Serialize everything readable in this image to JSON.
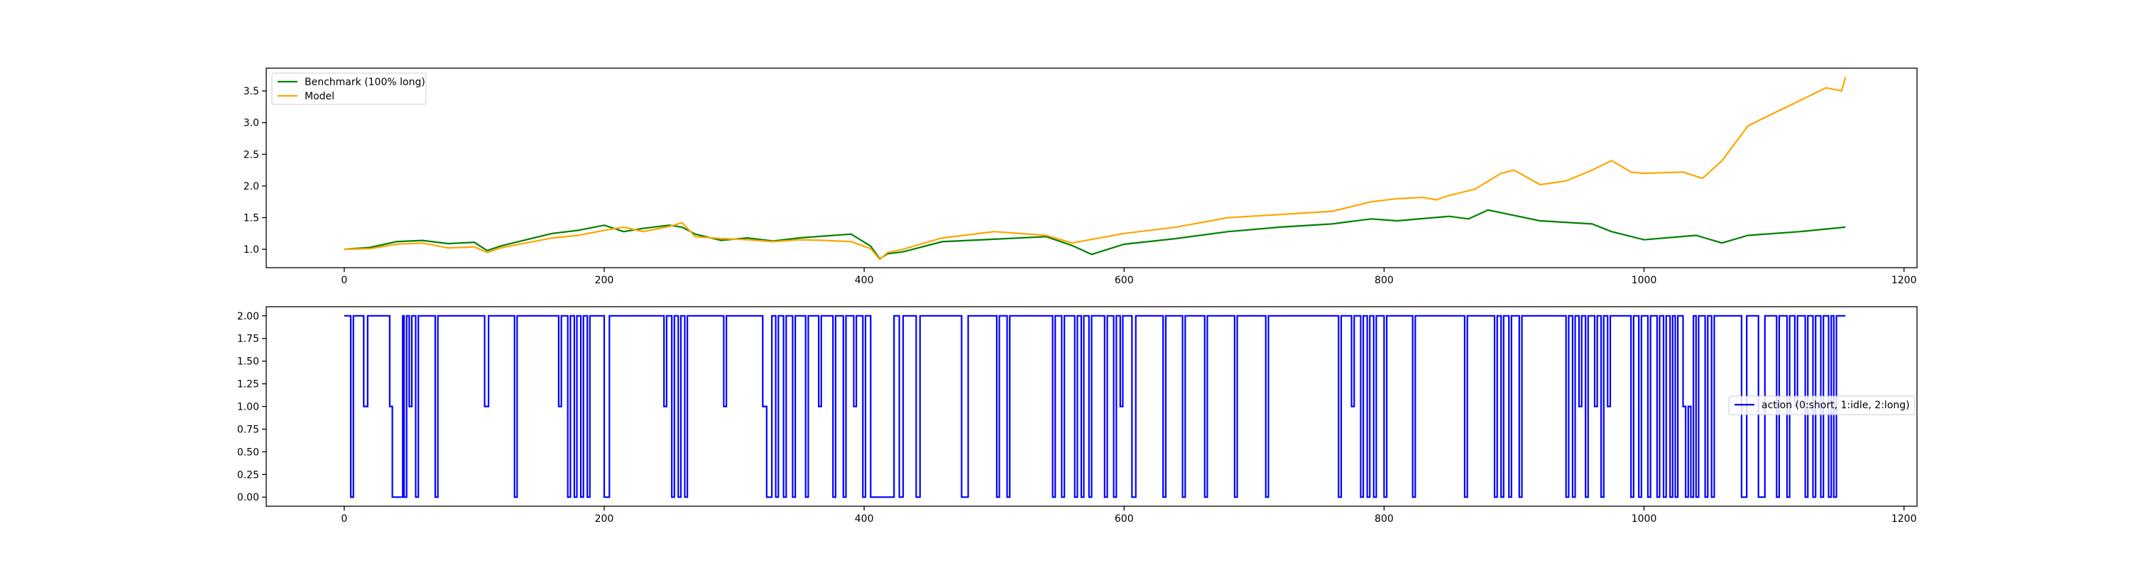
{
  "chart_data": [
    {
      "type": "line",
      "title": "",
      "xlabel": "",
      "ylabel": "",
      "xlim": [
        -60,
        1210
      ],
      "ylim": [
        0.71,
        3.86
      ],
      "x_ticks": [
        0,
        200,
        400,
        600,
        800,
        1000,
        1200
      ],
      "y_ticks": [
        1.0,
        1.5,
        2.0,
        2.5,
        3.0,
        3.5
      ],
      "y_tick_labels": [
        "1.0",
        "1.5",
        "2.0",
        "2.5",
        "3.0",
        "3.5"
      ],
      "grid": false,
      "legend_position": "upper-left",
      "series": [
        {
          "name": "Benchmark (100% long)",
          "color": "#008000",
          "x": [
            0,
            20,
            40,
            60,
            80,
            100,
            110,
            120,
            140,
            160,
            180,
            200,
            215,
            230,
            250,
            260,
            270,
            290,
            310,
            330,
            350,
            370,
            390,
            405,
            412,
            418,
            430,
            460,
            500,
            540,
            560,
            575,
            600,
            640,
            680,
            720,
            760,
            790,
            810,
            850,
            865,
            880,
            920,
            960,
            975,
            1000,
            1040,
            1060,
            1080,
            1120,
            1155
          ],
          "y": [
            1.0,
            1.03,
            1.12,
            1.14,
            1.09,
            1.11,
            0.98,
            1.05,
            1.15,
            1.25,
            1.3,
            1.38,
            1.28,
            1.33,
            1.38,
            1.35,
            1.24,
            1.14,
            1.18,
            1.13,
            1.18,
            1.21,
            1.24,
            1.05,
            0.85,
            0.93,
            0.96,
            1.12,
            1.16,
            1.2,
            1.06,
            0.92,
            1.08,
            1.17,
            1.28,
            1.35,
            1.4,
            1.48,
            1.45,
            1.52,
            1.48,
            1.62,
            1.45,
            1.4,
            1.28,
            1.15,
            1.22,
            1.1,
            1.22,
            1.28,
            1.35
          ]
        },
        {
          "name": "Model",
          "color": "#ffa500",
          "x": [
            0,
            20,
            40,
            60,
            80,
            100,
            110,
            120,
            140,
            160,
            180,
            200,
            215,
            230,
            250,
            260,
            270,
            290,
            310,
            330,
            350,
            370,
            390,
            405,
            412,
            418,
            430,
            460,
            500,
            540,
            560,
            600,
            640,
            680,
            720,
            760,
            790,
            810,
            830,
            840,
            850,
            870,
            890,
            900,
            920,
            940,
            960,
            975,
            990,
            1000,
            1030,
            1045,
            1060,
            1080,
            1100,
            1120,
            1140,
            1152,
            1155
          ],
          "y": [
            1.0,
            1.01,
            1.08,
            1.1,
            1.02,
            1.04,
            0.95,
            1.02,
            1.1,
            1.18,
            1.22,
            1.3,
            1.35,
            1.28,
            1.36,
            1.42,
            1.2,
            1.17,
            1.15,
            1.12,
            1.15,
            1.14,
            1.12,
            1.01,
            0.84,
            0.95,
            1.0,
            1.18,
            1.28,
            1.22,
            1.1,
            1.25,
            1.35,
            1.5,
            1.55,
            1.6,
            1.75,
            1.8,
            1.82,
            1.78,
            1.85,
            1.95,
            2.2,
            2.25,
            2.02,
            2.08,
            2.25,
            2.4,
            2.22,
            2.2,
            2.22,
            2.12,
            2.4,
            2.95,
            3.15,
            3.35,
            3.55,
            3.5,
            3.72
          ]
        }
      ]
    },
    {
      "type": "line",
      "title": "",
      "xlabel": "",
      "ylabel": "",
      "xlim": [
        -60,
        1210
      ],
      "ylim": [
        -0.1,
        2.1
      ],
      "x_ticks": [
        0,
        200,
        400,
        600,
        800,
        1000,
        1200
      ],
      "y_ticks": [
        0.0,
        0.25,
        0.5,
        0.75,
        1.0,
        1.25,
        1.5,
        1.75,
        2.0
      ],
      "y_tick_labels": [
        "0.00",
        "0.25",
        "0.50",
        "0.75",
        "1.00",
        "1.25",
        "1.50",
        "1.75",
        "2.00"
      ],
      "grid": false,
      "legend_position": "center-right",
      "series": [
        {
          "name": "action (0:short, 1:idle, 2:long)",
          "color": "#0000ff",
          "x_start": 0,
          "x_end": 1155,
          "runs": [
            [
              0,
              2
            ],
            [
              5,
              0
            ],
            [
              7,
              2
            ],
            [
              15,
              1
            ],
            [
              18,
              2
            ],
            [
              35,
              1
            ],
            [
              37,
              0
            ],
            [
              45,
              2
            ],
            [
              46,
              0
            ],
            [
              48,
              2
            ],
            [
              50,
              1
            ],
            [
              52,
              2
            ],
            [
              55,
              0
            ],
            [
              57,
              2
            ],
            [
              70,
              0
            ],
            [
              72,
              2
            ],
            [
              108,
              1
            ],
            [
              111,
              2
            ],
            [
              131,
              0
            ],
            [
              133,
              2
            ],
            [
              165,
              1
            ],
            [
              167,
              2
            ],
            [
              172,
              0
            ],
            [
              174,
              2
            ],
            [
              177,
              0
            ],
            [
              179,
              2
            ],
            [
              182,
              0
            ],
            [
              184,
              2
            ],
            [
              187,
              0
            ],
            [
              189,
              2
            ],
            [
              200,
              0
            ],
            [
              204,
              2
            ],
            [
              246,
              1
            ],
            [
              248,
              2
            ],
            [
              252,
              0
            ],
            [
              254,
              2
            ],
            [
              257,
              0
            ],
            [
              259,
              2
            ],
            [
              262,
              0
            ],
            [
              264,
              2
            ],
            [
              292,
              1
            ],
            [
              294,
              2
            ],
            [
              322,
              1
            ],
            [
              325,
              0
            ],
            [
              329,
              2
            ],
            [
              332,
              0
            ],
            [
              334,
              2
            ],
            [
              338,
              0
            ],
            [
              340,
              2
            ],
            [
              345,
              0
            ],
            [
              347,
              2
            ],
            [
              355,
              0
            ],
            [
              357,
              2
            ],
            [
              365,
              1
            ],
            [
              367,
              2
            ],
            [
              376,
              0
            ],
            [
              378,
              2
            ],
            [
              384,
              0
            ],
            [
              386,
              2
            ],
            [
              392,
              1
            ],
            [
              394,
              2
            ],
            [
              399,
              0
            ],
            [
              401,
              2
            ],
            [
              405,
              0
            ],
            [
              423,
              2
            ],
            [
              427,
              0
            ],
            [
              430,
              2
            ],
            [
              440,
              0
            ],
            [
              443,
              2
            ],
            [
              475,
              0
            ],
            [
              480,
              2
            ],
            [
              502,
              0
            ],
            [
              504,
              2
            ],
            [
              510,
              0
            ],
            [
              512,
              2
            ],
            [
              545,
              0
            ],
            [
              547,
              2
            ],
            [
              552,
              0
            ],
            [
              554,
              2
            ],
            [
              562,
              0
            ],
            [
              564,
              2
            ],
            [
              567,
              0
            ],
            [
              569,
              2
            ],
            [
              573,
              0
            ],
            [
              575,
              2
            ],
            [
              585,
              0
            ],
            [
              587,
              2
            ],
            [
              592,
              0
            ],
            [
              594,
              2
            ],
            [
              597,
              1
            ],
            [
              599,
              2
            ],
            [
              606,
              0
            ],
            [
              609,
              2
            ],
            [
              630,
              0
            ],
            [
              632,
              2
            ],
            [
              645,
              0
            ],
            [
              647,
              2
            ],
            [
              662,
              0
            ],
            [
              664,
              2
            ],
            [
              685,
              0
            ],
            [
              687,
              2
            ],
            [
              709,
              0
            ],
            [
              711,
              2
            ],
            [
              765,
              0
            ],
            [
              767,
              2
            ],
            [
              775,
              1
            ],
            [
              777,
              2
            ],
            [
              782,
              0
            ],
            [
              784,
              2
            ],
            [
              787,
              0
            ],
            [
              789,
              2
            ],
            [
              792,
              0
            ],
            [
              794,
              2
            ],
            [
              800,
              0
            ],
            [
              802,
              2
            ],
            [
              822,
              0
            ],
            [
              824,
              2
            ],
            [
              862,
              0
            ],
            [
              864,
              2
            ],
            [
              885,
              0
            ],
            [
              887,
              2
            ],
            [
              890,
              0
            ],
            [
              892,
              2
            ],
            [
              896,
              0
            ],
            [
              898,
              2
            ],
            [
              904,
              0
            ],
            [
              906,
              2
            ],
            [
              940,
              0
            ],
            [
              942,
              2
            ],
            [
              945,
              0
            ],
            [
              947,
              2
            ],
            [
              950,
              1
            ],
            [
              952,
              2
            ],
            [
              955,
              0
            ],
            [
              957,
              2
            ],
            [
              962,
              1
            ],
            [
              964,
              2
            ],
            [
              967,
              0
            ],
            [
              969,
              2
            ],
            [
              972,
              1
            ],
            [
              974,
              2
            ],
            [
              990,
              0
            ],
            [
              992,
              2
            ],
            [
              996,
              0
            ],
            [
              998,
              2
            ],
            [
              1003,
              0
            ],
            [
              1005,
              2
            ],
            [
              1010,
              0
            ],
            [
              1012,
              2
            ],
            [
              1015,
              0
            ],
            [
              1017,
              2
            ],
            [
              1020,
              0
            ],
            [
              1022,
              2
            ],
            [
              1024,
              0
            ],
            [
              1026,
              2
            ],
            [
              1030,
              1
            ],
            [
              1032,
              0
            ],
            [
              1034,
              1
            ],
            [
              1036,
              0
            ],
            [
              1038,
              2
            ],
            [
              1040,
              0
            ],
            [
              1042,
              2
            ],
            [
              1047,
              0
            ],
            [
              1049,
              2
            ],
            [
              1052,
              0
            ],
            [
              1054,
              2
            ],
            [
              1075,
              0
            ],
            [
              1079,
              2
            ],
            [
              1088,
              0
            ],
            [
              1093,
              2
            ],
            [
              1102,
              0
            ],
            [
              1104,
              2
            ],
            [
              1110,
              0
            ],
            [
              1112,
              2
            ],
            [
              1116,
              1
            ],
            [
              1118,
              2
            ],
            [
              1124,
              0
            ],
            [
              1126,
              2
            ],
            [
              1130,
              0
            ],
            [
              1132,
              2
            ],
            [
              1136,
              0
            ],
            [
              1138,
              2
            ],
            [
              1142,
              0
            ],
            [
              1144,
              2
            ],
            [
              1146,
              0
            ],
            [
              1148,
              2
            ]
          ]
        }
      ]
    }
  ]
}
